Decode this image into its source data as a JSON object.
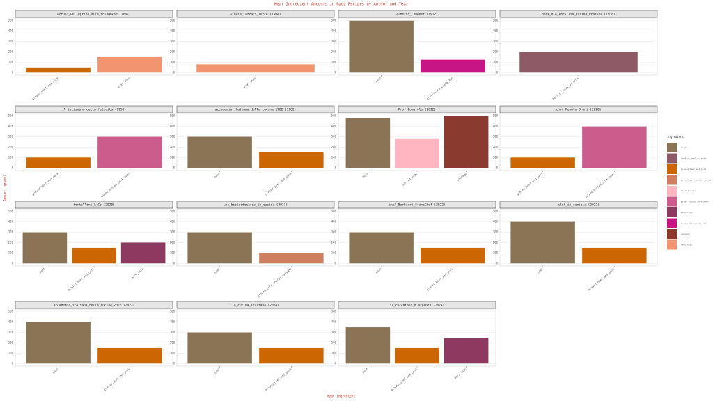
{
  "title": "Meat Ingredient Amounts in Ragu Recipes by Author and Year",
  "x_label": "Meat Ingredient",
  "y_label": "Amount (grams)",
  "legend": {
    "title": "ingredient",
    "items": [
      {
        "name": "beef",
        "color": "#8b7355"
      },
      {
        "name": "beef_or_veal_or_pork",
        "color": "#8e5a66"
      },
      {
        "name": "ground_beef_and_pork",
        "color": "#cc6600"
      },
      {
        "name": "ground_pork_and/or_sausage",
        "color": "#cd7f60"
      },
      {
        "name": "minced_veal",
        "color": "#ffb6c1"
      },
      {
        "name": "mixed_minced_pork_beef",
        "color": "#cc5c8c"
      },
      {
        "name": "pork_loin",
        "color": "#8e3a60"
      },
      {
        "name": "prosciutto_crudo_fat",
        "color": "#c71585"
      },
      {
        "name": "sausage",
        "color": "#8b3a2f"
      },
      {
        "name": "veal_shin",
        "color": "#f0956f"
      }
    ]
  },
  "chart_data": [
    {
      "type": "bar",
      "title": "Artusi_Pellegrino_alla_bolognese (1891)",
      "categories": [
        "ground_beef_and_pork",
        "veal_shin"
      ],
      "values": [
        50,
        150
      ],
      "ylim": [
        -25,
        525
      ],
      "yticks": [
        0,
        100,
        200,
        300,
        400,
        500
      ]
    },
    {
      "type": "bar",
      "title": "Giulia_Lazzari_Turco (1904)",
      "categories": [
        "veal_shin"
      ],
      "values": [
        80
      ],
      "ylim": [
        -25,
        525
      ],
      "yticks": [
        0,
        100,
        200,
        300,
        400,
        500
      ]
    },
    {
      "type": "bar",
      "title": "Alberto_Cougnet (1912)",
      "categories": [
        "beef",
        "prosciutto_crudo_fat"
      ],
      "values": [
        500,
        125
      ],
      "ylim": [
        -25,
        525
      ],
      "yticks": [
        0,
        100,
        200,
        300,
        400,
        500
      ]
    },
    {
      "type": "bar",
      "title": "book_die_Vorsilia_Cucina_Pratica (1936)",
      "categories": [
        "beef_or_veal_or_pork"
      ],
      "values": [
        200
      ],
      "ylim": [
        -25,
        525
      ],
      "yticks": [
        0,
        100,
        200,
        300,
        400,
        500
      ]
    },
    {
      "type": "bar",
      "title": "il_talismano_della_felicita (1950)",
      "categories": [
        "ground_beef_and_pork",
        "mixed_minced_pork_beef"
      ],
      "values": [
        100,
        300
      ],
      "ylim": [
        -25,
        525
      ],
      "yticks": [
        0,
        100,
        200,
        300,
        400,
        500
      ]
    },
    {
      "type": "bar",
      "title": "accademia_italiana_della_cucina_1982 (1982)",
      "categories": [
        "beef",
        "ground_beef_and_pork"
      ],
      "values": [
        300,
        150
      ],
      "ylim": [
        -25,
        525
      ],
      "yticks": [
        0,
        100,
        200,
        300,
        400,
        500
      ]
    },
    {
      "type": "bar",
      "title": "Prof_Pomarolo (2012)",
      "categories": [
        "beef",
        "minced_veal",
        "sausage"
      ],
      "values": [
        480,
        285,
        500
      ],
      "ylim": [
        -25,
        525
      ],
      "yticks": [
        0,
        100,
        200,
        300,
        400,
        500
      ]
    },
    {
      "type": "bar",
      "title": "chef_Renato_Bruni (2020)",
      "categories": [
        "ground_beef_and_pork",
        "mixed_minced_pork_beef"
      ],
      "values": [
        100,
        400
      ],
      "ylim": [
        -25,
        525
      ],
      "yticks": [
        0,
        100,
        200,
        300,
        400,
        500
      ]
    },
    {
      "type": "bar",
      "title": "tortellini_&_Co (2020)",
      "categories": [
        "beef",
        "ground_beef_and_pork",
        "pork_loin"
      ],
      "values": [
        300,
        150,
        200
      ],
      "ylim": [
        -25,
        525
      ],
      "yticks": [
        0,
        100,
        200,
        300,
        400,
        500
      ]
    },
    {
      "type": "bar",
      "title": "una_bibliotecaria_in_cucina (2021)",
      "categories": [
        "beef",
        "ground_pork_and/or_sausage"
      ],
      "values": [
        300,
        100
      ],
      "ylim": [
        -25,
        525
      ],
      "yticks": [
        0,
        100,
        200,
        300,
        400,
        500
      ]
    },
    {
      "type": "bar",
      "title": "chef_Barbieri_FrancChef (2022)",
      "categories": [
        "beef",
        "ground_beef_and_pork"
      ],
      "values": [
        300,
        150
      ],
      "ylim": [
        -25,
        525
      ],
      "yticks": [
        0,
        100,
        200,
        300,
        400,
        500
      ]
    },
    {
      "type": "bar",
      "title": "chef_in_camicia (2022)",
      "categories": [
        "beef",
        "ground_beef_and_pork"
      ],
      "values": [
        400,
        150
      ],
      "ylim": [
        -25,
        525
      ],
      "yticks": [
        0,
        100,
        200,
        300,
        400,
        500
      ]
    },
    {
      "type": "bar",
      "title": "accademia_italiana_della_cucina_2022 (2022)",
      "categories": [
        "beef",
        "ground_beef_and_pork"
      ],
      "values": [
        400,
        150
      ],
      "ylim": [
        -25,
        525
      ],
      "yticks": [
        0,
        100,
        200,
        300,
        400,
        500
      ]
    },
    {
      "type": "bar",
      "title": "la_cucina_italiana (2024)",
      "categories": [
        "beef",
        "ground_beef_and_pork"
      ],
      "values": [
        300,
        150
      ],
      "ylim": [
        -25,
        525
      ],
      "yticks": [
        0,
        100,
        200,
        300,
        400,
        500
      ]
    },
    {
      "type": "bar",
      "title": "il_cucchiaio_d'argento (2024)",
      "categories": [
        "beef",
        "ground_beef_and_pork",
        "pork_loin"
      ],
      "values": [
        350,
        150,
        250
      ],
      "ylim": [
        -25,
        525
      ],
      "yticks": [
        0,
        100,
        200,
        300,
        400,
        500
      ]
    }
  ]
}
